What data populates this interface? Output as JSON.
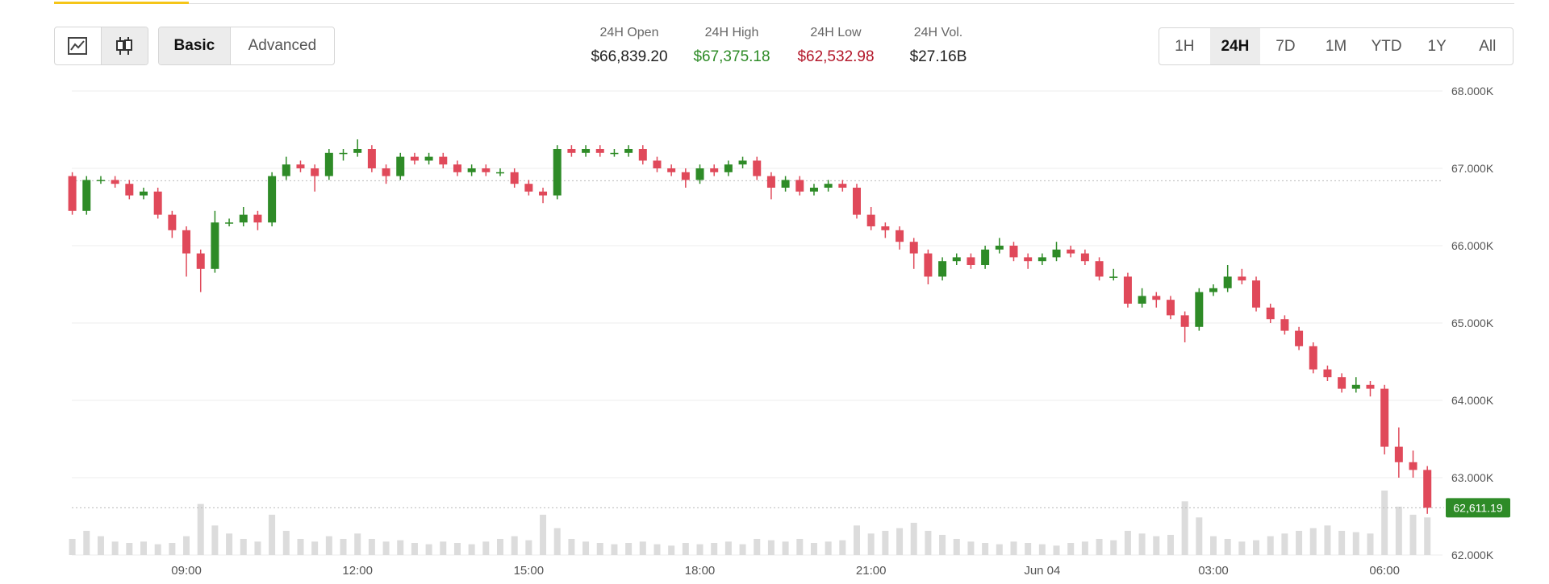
{
  "ui": {
    "view_buttons": [
      "Basic",
      "Advanced"
    ],
    "stats": [
      {
        "label": "24H Open",
        "value": "$66,839.20"
      },
      {
        "label": "24H High",
        "value": "$67,375.18"
      },
      {
        "label": "24H Low",
        "value": "$62,532.98"
      },
      {
        "label": "24H Vol.",
        "value": "$27.16B"
      }
    ],
    "ranges": [
      "1H",
      "24H",
      "7D",
      "1M",
      "YTD",
      "1Y",
      "All"
    ]
  },
  "chart_data": {
    "type": "candlestick",
    "up_color": "#2e8b27",
    "down_color": "#e0495a",
    "volume_color": "#dcdcdc",
    "categories": [
      null,
      null,
      null,
      null,
      null,
      null,
      null,
      null,
      "09:00",
      null,
      null,
      null,
      null,
      null,
      null,
      null,
      null,
      null,
      null,
      null,
      "12:00",
      null,
      null,
      null,
      null,
      null,
      null,
      null,
      null,
      null,
      null,
      null,
      "15:00",
      null,
      null,
      null,
      null,
      null,
      null,
      null,
      null,
      null,
      null,
      null,
      "18:00",
      null,
      null,
      null,
      null,
      null,
      null,
      null,
      null,
      null,
      null,
      null,
      "21:00",
      null,
      null,
      null,
      null,
      null,
      null,
      null,
      null,
      null,
      null,
      null,
      "Jun 04",
      null,
      null,
      null,
      null,
      null,
      null,
      null,
      null,
      null,
      null,
      null,
      "03:00",
      null,
      null,
      null,
      null,
      null,
      null,
      null,
      null,
      null,
      null,
      null,
      "06:00",
      null,
      null,
      null
    ],
    "open": [
      66900,
      66450,
      66850,
      66850,
      66800,
      66650,
      66700,
      66400,
      66200,
      65900,
      65700,
      66300,
      66300,
      66400,
      66300,
      66900,
      67050,
      67000,
      66900,
      67200,
      67200,
      67250,
      67000,
      66900,
      67150,
      67100,
      67150,
      67050,
      66950,
      67000,
      66950,
      66950,
      66800,
      66700,
      66650,
      67250,
      67200,
      67250,
      67200,
      67200,
      67250,
      67100,
      67000,
      66950,
      66850,
      67000,
      66950,
      67050,
      67100,
      66900,
      66750,
      66850,
      66700,
      66750,
      66800,
      66750,
      66400,
      66250,
      66200,
      66050,
      65900,
      65600,
      65800,
      65850,
      65750,
      65950,
      66000,
      65850,
      65800,
      65850,
      65950,
      65900,
      65800,
      65600,
      65600,
      65250,
      65350,
      65300,
      65100,
      64950,
      65400,
      65450,
      65600,
      65550,
      65200,
      65050,
      64900,
      64700,
      64400,
      64300,
      64150,
      64200,
      64150,
      63400,
      63200,
      63100
    ],
    "high": [
      66950,
      66900,
      66900,
      66900,
      66850,
      66750,
      66750,
      66450,
      66250,
      65950,
      66450,
      66350,
      66500,
      66450,
      66950,
      67150,
      67100,
      67050,
      67250,
      67250,
      67375.18,
      67300,
      67050,
      67200,
      67200,
      67200,
      67200,
      67100,
      67050,
      67050,
      67000,
      67000,
      66850,
      66750,
      67300,
      67300,
      67300,
      67300,
      67250,
      67300,
      67300,
      67150,
      67050,
      67000,
      67050,
      67050,
      67100,
      67150,
      67150,
      66950,
      66900,
      66900,
      66800,
      66850,
      66850,
      66800,
      66500,
      66300,
      66250,
      66100,
      65950,
      65850,
      65900,
      65900,
      66000,
      66100,
      66050,
      65900,
      65900,
      66050,
      66000,
      65950,
      65850,
      65700,
      65650,
      65450,
      65400,
      65350,
      65150,
      65450,
      65500,
      65750,
      65700,
      65600,
      65250,
      65100,
      64950,
      64750,
      64450,
      64350,
      64300,
      64250,
      64200,
      63650,
      63350,
      63150
    ],
    "low": [
      66400,
      66400,
      66800,
      66750,
      66600,
      66600,
      66350,
      66100,
      65600,
      65400,
      65650,
      66250,
      66250,
      66200,
      66250,
      66850,
      66950,
      66700,
      66850,
      67100,
      67150,
      66950,
      66800,
      66850,
      67050,
      67050,
      67000,
      66900,
      66900,
      66900,
      66900,
      66750,
      66650,
      66550,
      66600,
      67150,
      67150,
      67150,
      67150,
      67150,
      67050,
      66950,
      66900,
      66750,
      66800,
      66900,
      66900,
      67000,
      66850,
      66600,
      66700,
      66650,
      66650,
      66700,
      66700,
      66350,
      66200,
      66100,
      65950,
      65700,
      65500,
      65550,
      65750,
      65700,
      65700,
      65900,
      65800,
      65700,
      65750,
      65800,
      65850,
      65750,
      65550,
      65550,
      65200,
      65200,
      65200,
      65050,
      64750,
      64900,
      65350,
      65400,
      65500,
      65150,
      65000,
      64850,
      64650,
      64350,
      64250,
      64100,
      64100,
      64050,
      63300,
      63000,
      63000,
      62532.98
    ],
    "close": [
      66450,
      66850,
      66850,
      66800,
      66650,
      66700,
      66400,
      66200,
      65900,
      65700,
      66300,
      66300,
      66400,
      66300,
      66900,
      67050,
      67000,
      66900,
      67200,
      67200,
      67250,
      67000,
      66900,
      67150,
      67100,
      67150,
      67050,
      66950,
      67000,
      66950,
      66950,
      66800,
      66700,
      66650,
      67250,
      67200,
      67250,
      67200,
      67200,
      67250,
      67100,
      67000,
      66950,
      66850,
      67000,
      66950,
      67050,
      67100,
      66900,
      66750,
      66850,
      66700,
      66750,
      66800,
      66750,
      66400,
      66250,
      66200,
      66050,
      65900,
      65600,
      65800,
      65850,
      65750,
      65950,
      66000,
      65850,
      65800,
      65850,
      65950,
      65900,
      65800,
      65600,
      65600,
      65250,
      65350,
      65300,
      65100,
      64950,
      65400,
      65450,
      65600,
      65550,
      65200,
      65050,
      64900,
      64700,
      64400,
      64300,
      64150,
      64200,
      64150,
      63400,
      63200,
      63100,
      62611.19
    ],
    "volume": [
      12,
      18,
      14,
      10,
      9,
      10,
      8,
      9,
      14,
      38,
      22,
      16,
      12,
      10,
      30,
      18,
      12,
      10,
      14,
      12,
      16,
      12,
      10,
      11,
      9,
      8,
      10,
      9,
      8,
      10,
      12,
      14,
      11,
      30,
      20,
      12,
      10,
      9,
      8,
      9,
      10,
      8,
      7,
      9,
      8,
      9,
      10,
      8,
      12,
      11,
      10,
      12,
      9,
      10,
      11,
      22,
      16,
      18,
      20,
      24,
      18,
      15,
      12,
      10,
      9,
      8,
      10,
      9,
      8,
      7,
      9,
      10,
      12,
      11,
      18,
      16,
      14,
      15,
      40,
      28,
      14,
      12,
      10,
      11,
      14,
      16,
      18,
      20,
      22,
      18,
      17,
      16,
      48,
      36,
      30,
      28
    ],
    "ylim": [
      62000,
      68000
    ],
    "yticks": [
      {
        "value": 62000,
        "label": "62.000K"
      },
      {
        "value": 63000,
        "label": "63.000K"
      },
      {
        "value": 64000,
        "label": "64.000K"
      },
      {
        "value": 65000,
        "label": "65.000K"
      },
      {
        "value": 66000,
        "label": "66.000K"
      },
      {
        "value": 67000,
        "label": "67.000K"
      },
      {
        "value": 68000,
        "label": "68.000K"
      }
    ],
    "reference_line": 66839.2,
    "last_price": {
      "value": 62611.19,
      "label": "62,611.19"
    },
    "grid": true
  }
}
